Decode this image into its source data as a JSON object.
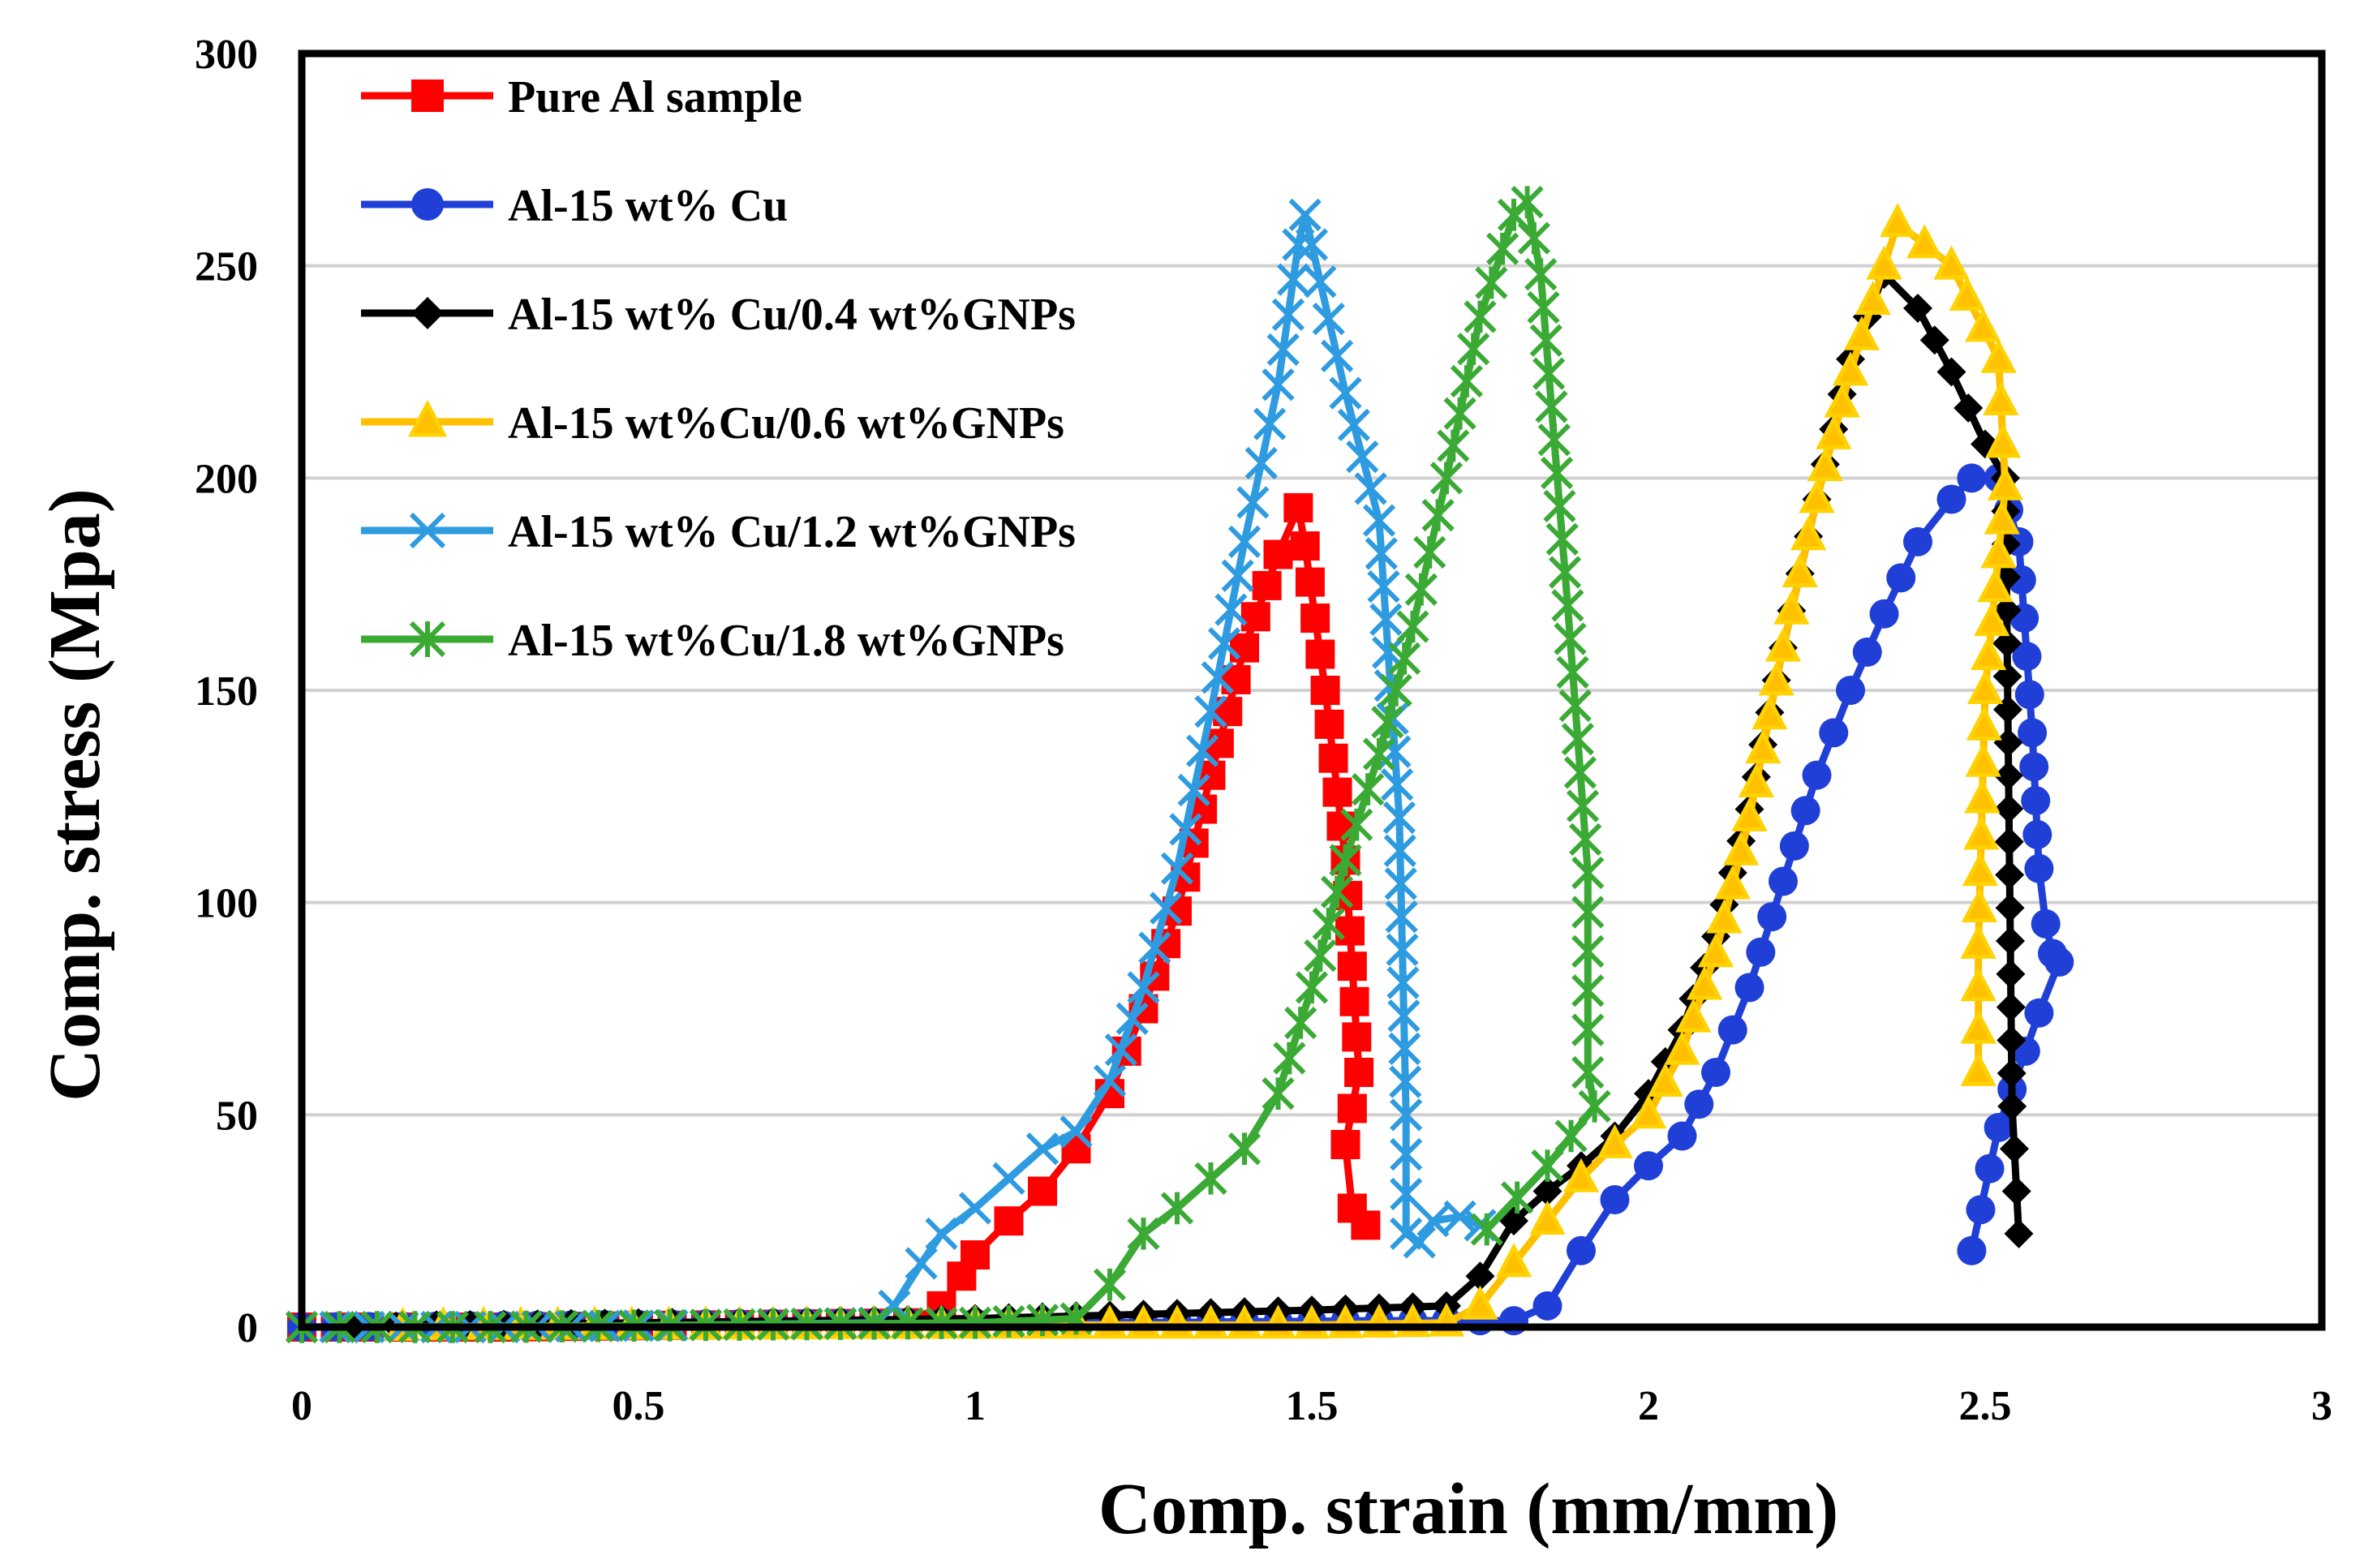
{
  "chart_data": {
    "type": "line",
    "title": "",
    "xlabel": "Comp. strain (mm/mm)",
    "ylabel": "Comp. stress (Mpa)",
    "xlim": [
      0,
      3
    ],
    "ylim": [
      0,
      300
    ],
    "x_ticks": [
      "0",
      "0.5",
      "1",
      "1.5",
      "2",
      "2.5",
      "3"
    ],
    "y_ticks": [
      "0",
      "50",
      "100",
      "150",
      "200",
      "250",
      "300"
    ],
    "grid": "horizontal",
    "legend_position": "top-left",
    "series": [
      {
        "name": "Pure Al sample",
        "color": "#ff0000",
        "marker": "square",
        "points": [
          [
            0,
            0
          ],
          [
            0.3,
            0
          ],
          [
            0.6,
            0.5
          ],
          [
            0.9,
            1
          ],
          [
            0.95,
            5
          ],
          [
            0.98,
            12
          ],
          [
            1.0,
            17
          ],
          [
            1.05,
            25
          ],
          [
            1.1,
            32
          ],
          [
            1.15,
            42
          ],
          [
            1.2,
            55
          ],
          [
            1.25,
            75
          ],
          [
            1.3,
            98
          ],
          [
            1.35,
            130
          ],
          [
            1.4,
            160
          ],
          [
            1.45,
            182
          ],
          [
            1.48,
            193
          ],
          [
            1.49,
            184
          ],
          [
            1.52,
            150
          ],
          [
            1.55,
            110
          ],
          [
            1.57,
            60
          ],
          [
            1.55,
            43
          ],
          [
            1.56,
            28
          ],
          [
            1.58,
            24
          ]
        ]
      },
      {
        "name": "Al-15 wt% Cu",
        "color": "#1f3fd6",
        "marker": "circle",
        "points": [
          [
            0,
            0
          ],
          [
            0.4,
            0.5
          ],
          [
            0.8,
            1
          ],
          [
            1.2,
            1
          ],
          [
            1.6,
            1.5
          ],
          [
            1.8,
            1.5
          ],
          [
            1.85,
            5
          ],
          [
            1.9,
            18
          ],
          [
            1.95,
            30
          ],
          [
            2.0,
            38
          ],
          [
            2.05,
            45
          ],
          [
            2.1,
            60
          ],
          [
            2.15,
            80
          ],
          [
            2.2,
            105
          ],
          [
            2.25,
            130
          ],
          [
            2.3,
            150
          ],
          [
            2.35,
            168
          ],
          [
            2.4,
            185
          ],
          [
            2.45,
            195
          ],
          [
            2.48,
            200
          ],
          [
            2.52,
            200
          ],
          [
            2.55,
            185
          ],
          [
            2.57,
            140
          ],
          [
            2.58,
            108
          ],
          [
            2.59,
            95
          ],
          [
            2.6,
            88
          ],
          [
            2.61,
            86
          ],
          [
            2.58,
            74
          ],
          [
            2.52,
            47
          ],
          [
            2.48,
            18
          ]
        ]
      },
      {
        "name": "Al-15 wt% Cu/0.4 wt%GNPs",
        "color": "#000000",
        "marker": "diamond",
        "points": [
          [
            0.08,
            0
          ],
          [
            0.2,
            0.5
          ],
          [
            0.5,
            1
          ],
          [
            1.0,
            2
          ],
          [
            1.5,
            4
          ],
          [
            1.7,
            5
          ],
          [
            1.75,
            12
          ],
          [
            1.8,
            25
          ],
          [
            1.85,
            32
          ],
          [
            1.9,
            38
          ],
          [
            1.95,
            45
          ],
          [
            2.0,
            55
          ],
          [
            2.05,
            70
          ],
          [
            2.1,
            92
          ],
          [
            2.15,
            122
          ],
          [
            2.2,
            160
          ],
          [
            2.25,
            195
          ],
          [
            2.3,
            228
          ],
          [
            2.35,
            248
          ],
          [
            2.4,
            240
          ],
          [
            2.45,
            225
          ],
          [
            2.5,
            208
          ],
          [
            2.53,
            200
          ],
          [
            2.54,
            52
          ],
          [
            2.55,
            22
          ]
        ]
      },
      {
        "name": "Al-15 wt%Cu/0.6 wt%GNPs",
        "color": "#ffd200",
        "fill": "#ffc000",
        "marker": "triangle",
        "points": [
          [
            0.15,
            0
          ],
          [
            0.27,
            0.2
          ],
          [
            0.6,
            0.3
          ],
          [
            1.0,
            0.5
          ],
          [
            1.5,
            0.5
          ],
          [
            1.7,
            1
          ],
          [
            1.75,
            5
          ],
          [
            1.8,
            15
          ],
          [
            1.85,
            25
          ],
          [
            1.9,
            35
          ],
          [
            1.95,
            43
          ],
          [
            2.0,
            50
          ],
          [
            2.05,
            65
          ],
          [
            2.1,
            88
          ],
          [
            2.15,
            120
          ],
          [
            2.2,
            160
          ],
          [
            2.25,
            195
          ],
          [
            2.3,
            225
          ],
          [
            2.35,
            250
          ],
          [
            2.37,
            260
          ],
          [
            2.45,
            250
          ],
          [
            2.52,
            228
          ],
          [
            2.53,
            198
          ],
          [
            2.5,
            150
          ],
          [
            2.49,
            90
          ],
          [
            2.49,
            60
          ]
        ]
      },
      {
        "name": "Al-15 wt% Cu/1.2 wt%GNPs",
        "color": "#2e9be0",
        "marker": "x",
        "points": [
          [
            0,
            0
          ],
          [
            0.3,
            0
          ],
          [
            0.6,
            0.5
          ],
          [
            0.85,
            1
          ],
          [
            0.88,
            5
          ],
          [
            0.92,
            15
          ],
          [
            0.95,
            22
          ],
          [
            1.0,
            28
          ],
          [
            1.05,
            35
          ],
          [
            1.1,
            42
          ],
          [
            1.15,
            46
          ],
          [
            1.2,
            58
          ],
          [
            1.25,
            80
          ],
          [
            1.3,
            108
          ],
          [
            1.35,
            145
          ],
          [
            1.4,
            185
          ],
          [
            1.45,
            222
          ],
          [
            1.48,
            255
          ],
          [
            1.49,
            262
          ],
          [
            1.5,
            255
          ],
          [
            1.55,
            220
          ],
          [
            1.6,
            190
          ],
          [
            1.63,
            120
          ],
          [
            1.64,
            50
          ],
          [
            1.64,
            22
          ],
          [
            1.66,
            20
          ],
          [
            1.68,
            25
          ],
          [
            1.72,
            26
          ],
          [
            1.75,
            24
          ]
        ]
      },
      {
        "name": "Al-15 wt%Cu/1.8 wt%GNPs",
        "color": "#3aaa35",
        "marker": "asterisk",
        "points": [
          [
            0,
            0
          ],
          [
            0.28,
            0
          ],
          [
            0.6,
            0.5
          ],
          [
            1.0,
            1
          ],
          [
            1.15,
            2
          ],
          [
            1.2,
            10
          ],
          [
            1.25,
            22
          ],
          [
            1.3,
            28
          ],
          [
            1.35,
            35
          ],
          [
            1.4,
            42
          ],
          [
            1.45,
            55
          ],
          [
            1.5,
            80
          ],
          [
            1.55,
            110
          ],
          [
            1.6,
            135
          ],
          [
            1.65,
            165
          ],
          [
            1.7,
            200
          ],
          [
            1.75,
            238
          ],
          [
            1.8,
            262
          ],
          [
            1.82,
            265
          ],
          [
            1.84,
            248
          ],
          [
            1.88,
            170
          ],
          [
            1.91,
            107
          ],
          [
            1.91,
            70
          ],
          [
            1.91,
            60
          ],
          [
            1.92,
            52
          ],
          [
            1.85,
            38
          ],
          [
            1.76,
            23
          ]
        ]
      }
    ]
  }
}
